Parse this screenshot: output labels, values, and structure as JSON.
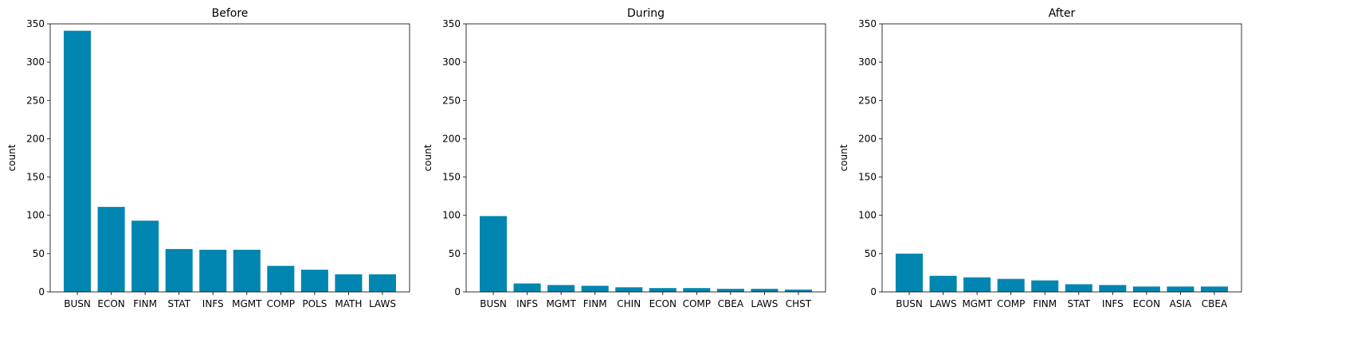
{
  "chart_data": [
    {
      "type": "bar",
      "title": "Before",
      "xlabel": "",
      "ylabel": "count",
      "ylim": [
        0,
        350
      ],
      "yticks": [
        0,
        50,
        100,
        150,
        200,
        250,
        300,
        350
      ],
      "color": "#0086b0",
      "categories": [
        "BUSN",
        "ECON",
        "FINM",
        "STAT",
        "INFS",
        "MGMT",
        "COMP",
        "POLS",
        "MATH",
        "LAWS"
      ],
      "values": [
        341,
        111,
        93,
        56,
        55,
        55,
        34,
        29,
        23,
        23
      ]
    },
    {
      "type": "bar",
      "title": "During",
      "xlabel": "",
      "ylabel": "count",
      "ylim": [
        0,
        350
      ],
      "yticks": [
        0,
        50,
        100,
        150,
        200,
        250,
        300,
        350
      ],
      "color": "#0086b0",
      "categories": [
        "BUSN",
        "INFS",
        "MGMT",
        "FINM",
        "CHIN",
        "ECON",
        "COMP",
        "CBEA",
        "LAWS",
        "CHST"
      ],
      "values": [
        99,
        11,
        9,
        8,
        6,
        5,
        5,
        4,
        4,
        3
      ]
    },
    {
      "type": "bar",
      "title": "After",
      "xlabel": "",
      "ylabel": "count",
      "ylim": [
        0,
        350
      ],
      "yticks": [
        0,
        50,
        100,
        150,
        200,
        250,
        300,
        350
      ],
      "color": "#0086b0",
      "categories": [
        "BUSN",
        "LAWS",
        "MGMT",
        "COMP",
        "FINM",
        "STAT",
        "INFS",
        "ECON",
        "ASIA",
        "CBEA"
      ],
      "values": [
        50,
        21,
        19,
        17,
        15,
        10,
        9,
        7,
        7,
        7
      ]
    }
  ]
}
